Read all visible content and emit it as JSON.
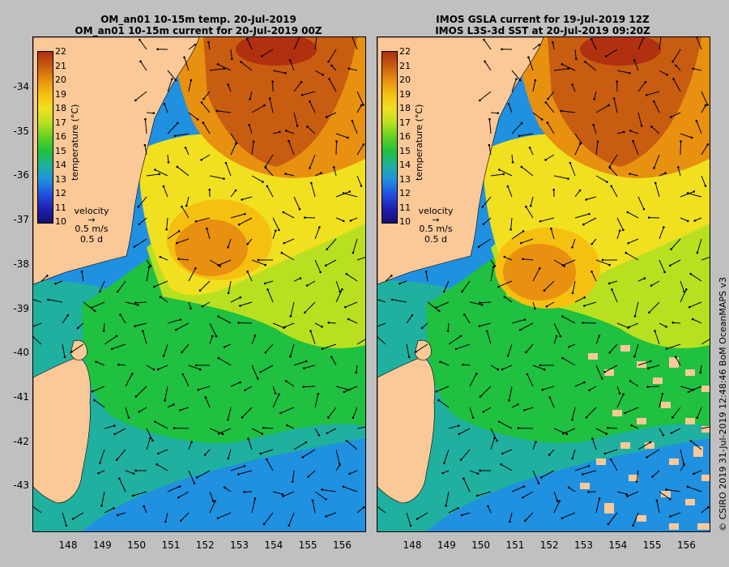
{
  "left_panel": {
    "title_line1": "OM_an01 10-15m temp. 20-Jul-2019",
    "title_line2": "OM_an01 10-15m current for 20-Jul-2019 00Z"
  },
  "right_panel": {
    "title_line1": "IMOS GSLA current for 19-Jul-2019 12Z",
    "title_line2": "IMOS L3S-3d SST at 20-Jul-2019 09:20Z"
  },
  "colorbar": {
    "ticks": [
      "22",
      "21",
      "20",
      "19",
      "18",
      "17",
      "16",
      "15",
      "14",
      "13",
      "12",
      "11",
      "10"
    ],
    "title": "temperature (°C)",
    "colors": [
      "#b03010",
      "#c85c10",
      "#e89010",
      "#f5c010",
      "#f0e020",
      "#b8e020",
      "#60d020",
      "#20c040",
      "#20b0a0",
      "#2090e0",
      "#2050e0",
      "#2020b0",
      "#101070"
    ]
  },
  "velocity_legend": {
    "label": "velocity",
    "speed": "0.5 m/s",
    "duration": "0.5 d"
  },
  "latitudes": [
    "-34",
    "-35",
    "-36",
    "-37",
    "-38",
    "-39",
    "-40",
    "-41",
    "-42",
    "-43"
  ],
  "longitudes": [
    "148",
    "149",
    "150",
    "151",
    "152",
    "153",
    "154",
    "155",
    "156"
  ],
  "credit": "© CSIRO 2019   31-Jul-2019 12:48:46 BoM OceanMAPS v3",
  "colors": {
    "land": "#fbc898",
    "frame_bg": "#c0c0c0"
  }
}
